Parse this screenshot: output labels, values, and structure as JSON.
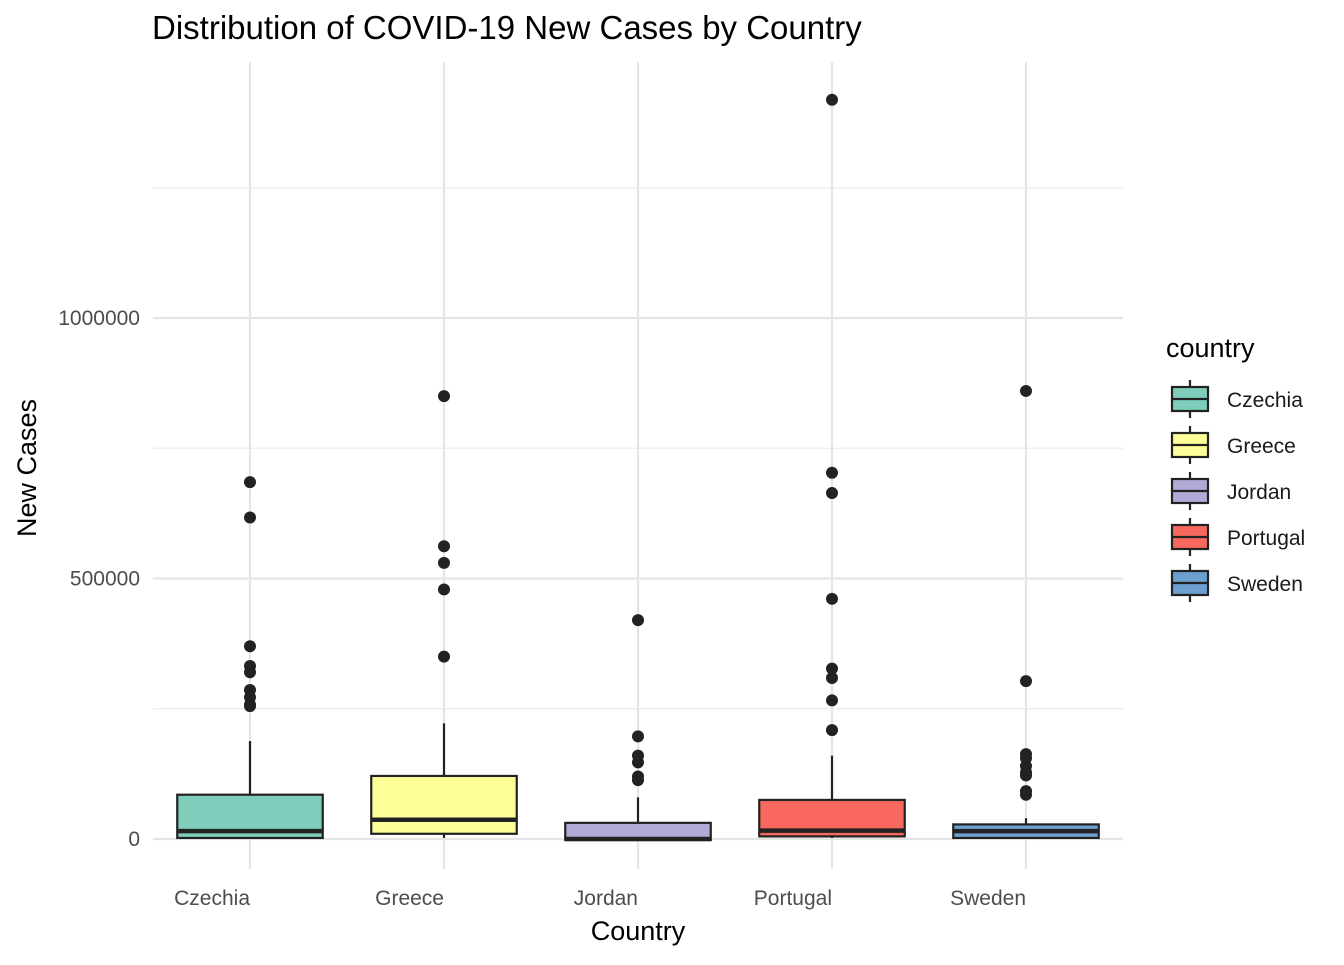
{
  "chart_data": {
    "type": "box",
    "title": "Distribution of COVID-19 New Cases by Country",
    "xlabel": "Country",
    "ylabel": "New Cases",
    "categories": [
      "Czechia",
      "Greece",
      "Jordan",
      "Portugal",
      "Sweden"
    ],
    "ylim": [
      -60000,
      1490000
    ],
    "y_ticks": [
      0,
      500000,
      1000000
    ],
    "y_tick_labels": [
      "0",
      "500000",
      "1000000"
    ],
    "grid": true,
    "legend": {
      "title": "country",
      "position": "right"
    },
    "colors": {
      "Czechia": "#7fcdbb",
      "Greece": "#ffff99",
      "Jordan": "#b3a9d6",
      "Portugal": "#f8685f",
      "Sweden": "#6b9fcf"
    },
    "series": [
      {
        "name": "Czechia",
        "min": 0,
        "q1": 2000,
        "median": 15000,
        "q3": 85000,
        "max": 188000,
        "outliers": [
          685000,
          617000,
          370000,
          332000,
          320000,
          286000,
          272000,
          258000,
          255000
        ]
      },
      {
        "name": "Greece",
        "min": 2000,
        "q1": 10000,
        "median": 37000,
        "q3": 121000,
        "max": 222000,
        "outliers": [
          850000,
          562000,
          530000,
          479000,
          350000
        ]
      },
      {
        "name": "Jordan",
        "min": -3000,
        "q1": -2000,
        "median": 0,
        "q3": 31000,
        "max": 80000,
        "outliers": [
          420000,
          197000,
          160000,
          147000,
          120000,
          113000
        ]
      },
      {
        "name": "Portugal",
        "min": 2000,
        "q1": 5000,
        "median": 16000,
        "q3": 75000,
        "max": 160000,
        "outliers": [
          1419000,
          703000,
          664000,
          461000,
          327000,
          309000,
          266000,
          209000
        ]
      },
      {
        "name": "Sweden",
        "min": 0,
        "q1": 2000,
        "median": 15000,
        "q3": 28000,
        "max": 40000,
        "outliers": [
          860000,
          303000,
          163000,
          155000,
          140000,
          128000,
          122000,
          92000,
          85000
        ]
      }
    ]
  }
}
